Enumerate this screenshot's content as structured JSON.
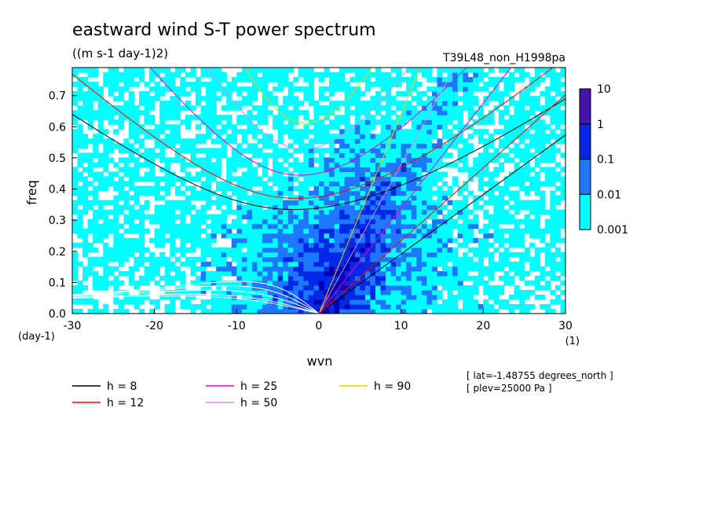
{
  "chart_data": {
    "type": "heatmap",
    "title": "eastward wind S-T power spectrum",
    "subtitle": "((m s-1 day-1)2)",
    "experiment": "T39L48_non_H1998pa",
    "xlabel": "wvn",
    "ylabel": "freq",
    "x_unit": "(1)",
    "y_unit": "(day-1)",
    "xlim": [
      -30,
      30
    ],
    "ylim": [
      0,
      0.79
    ],
    "x_ticks": [
      "-30",
      "-20",
      "-10",
      "0",
      "10",
      "20",
      "30"
    ],
    "y_ticks": [
      "0.0",
      "0.1",
      "0.2",
      "0.3",
      "0.4",
      "0.5",
      "0.6",
      "0.7"
    ],
    "colorbar": {
      "levels": [
        "0.001",
        "0.01",
        "0.1",
        "1",
        "10"
      ],
      "colors": [
        "#00ffff",
        "#1e78ff",
        "#0028e6",
        "#0000b4",
        "#4614aa"
      ]
    },
    "info_lines": [
      "[ lat=-1.48755 degrees_north ]",
      "[ plev=25000 Pa ]"
    ],
    "dispersion_curves": [
      {
        "label": "h =  8",
        "h": 8,
        "color": "#000000"
      },
      {
        "label": "h = 12",
        "h": 12,
        "color": "#ff0000"
      },
      {
        "label": "h = 25",
        "h": 25,
        "color": "#e600c8"
      },
      {
        "label": "h = 50",
        "h": 50,
        "color": "#d28cf0"
      },
      {
        "label": "h = 90",
        "h": 90,
        "color": "#f0d200"
      }
    ]
  }
}
